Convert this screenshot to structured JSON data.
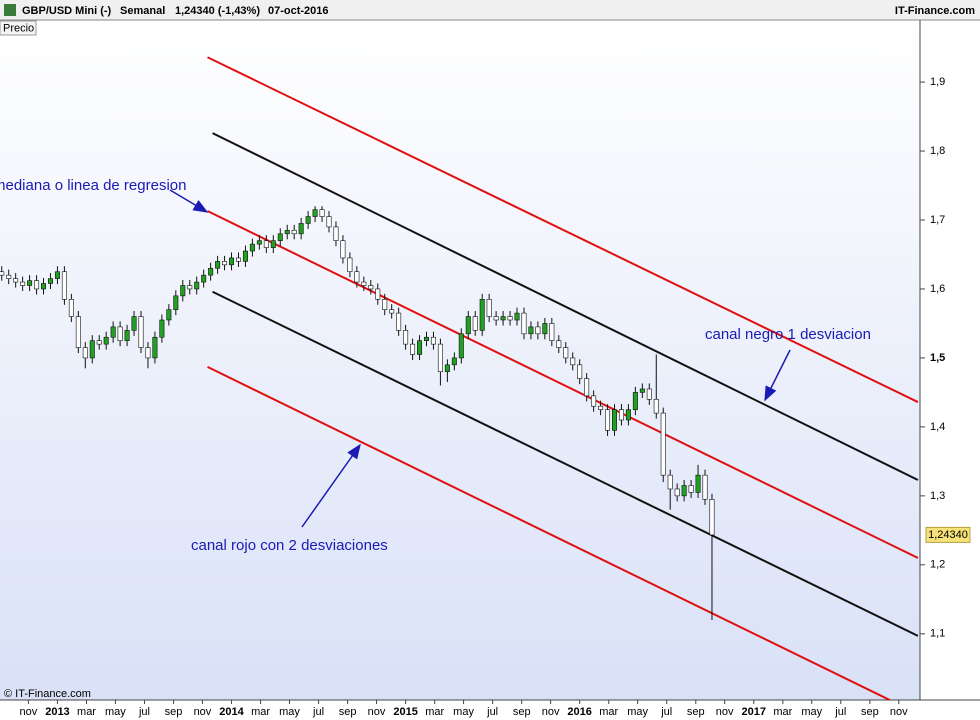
{
  "header": {
    "symbol": "GBP/USD Mini (-)",
    "period": "Semanal",
    "quote": "1,24340 (-1,43%)",
    "date": "07-oct-2016",
    "brand": "IT-Finance.com"
  },
  "panel_label": "Precio",
  "copyright": "© IT-Finance.com",
  "chart_data": {
    "type": "candlestick",
    "up_color": "#22a022",
    "down_color": "#ffffff",
    "xlim": [
      2012.67,
      2017.955
    ],
    "ylim": [
      1.004,
      1.99
    ],
    "xticks": [
      {
        "value": 2012.833,
        "label": "nov"
      },
      {
        "value": 2013,
        "label": "2013"
      },
      {
        "value": 2013.167,
        "label": "mar"
      },
      {
        "value": 2013.333,
        "label": "may"
      },
      {
        "value": 2013.5,
        "label": "jul"
      },
      {
        "value": 2013.667,
        "label": "sep"
      },
      {
        "value": 2013.833,
        "label": "nov"
      },
      {
        "value": 2014,
        "label": "2014"
      },
      {
        "value": 2014.167,
        "label": "mar"
      },
      {
        "value": 2014.333,
        "label": "may"
      },
      {
        "value": 2014.5,
        "label": "jul"
      },
      {
        "value": 2014.667,
        "label": "sep"
      },
      {
        "value": 2014.833,
        "label": "nov"
      },
      {
        "value": 2015,
        "label": "2015"
      },
      {
        "value": 2015.167,
        "label": "mar"
      },
      {
        "value": 2015.333,
        "label": "may"
      },
      {
        "value": 2015.5,
        "label": "jul"
      },
      {
        "value": 2015.667,
        "label": "sep"
      },
      {
        "value": 2015.833,
        "label": "nov"
      },
      {
        "value": 2016,
        "label": "2016"
      },
      {
        "value": 2016.167,
        "label": "mar"
      },
      {
        "value": 2016.333,
        "label": "may"
      },
      {
        "value": 2016.5,
        "label": "jul"
      },
      {
        "value": 2016.667,
        "label": "sep"
      },
      {
        "value": 2016.833,
        "label": "nov"
      },
      {
        "value": 2017,
        "label": "2017"
      },
      {
        "value": 2017.167,
        "label": "mar"
      },
      {
        "value": 2017.333,
        "label": "may"
      },
      {
        "value": 2017.5,
        "label": "jul"
      },
      {
        "value": 2017.667,
        "label": "sep"
      },
      {
        "value": 2017.833,
        "label": "nov"
      }
    ],
    "yticks": [
      {
        "value": 1.1,
        "label": "1,1"
      },
      {
        "value": 1.2,
        "label": "1,2"
      },
      {
        "value": 1.3,
        "label": "1,3"
      },
      {
        "value": 1.4,
        "label": "1,4"
      },
      {
        "value": 1.5,
        "label": "1,5"
      },
      {
        "value": 1.6,
        "label": "1,6"
      },
      {
        "value": 1.7,
        "label": "1,7"
      },
      {
        "value": 1.8,
        "label": "1,8"
      },
      {
        "value": 1.9,
        "label": "1,9"
      }
    ],
    "last_price": {
      "value": 1.2434,
      "label": "1,24340"
    },
    "candles": {
      "x": [
        2012.68,
        2012.72,
        2012.76,
        2012.8,
        2012.84,
        2012.88,
        2012.92,
        2012.96,
        2013,
        2013.04,
        2013.08,
        2013.12,
        2013.16,
        2013.2,
        2013.24,
        2013.28,
        2013.32,
        2013.36,
        2013.4,
        2013.44,
        2013.48,
        2013.52,
        2013.56,
        2013.6,
        2013.64,
        2013.68,
        2013.72,
        2013.76,
        2013.8,
        2013.84,
        2013.88,
        2013.92,
        2013.96,
        2014,
        2014.04,
        2014.08,
        2014.12,
        2014.16,
        2014.2,
        2014.24,
        2014.28,
        2014.32,
        2014.36,
        2014.4,
        2014.44,
        2014.48,
        2014.52,
        2014.56,
        2014.6,
        2014.64,
        2014.68,
        2014.72,
        2014.76,
        2014.8,
        2014.84,
        2014.88,
        2014.92,
        2014.96,
        2015,
        2015.04,
        2015.08,
        2015.12,
        2015.16,
        2015.2,
        2015.24,
        2015.28,
        2015.32,
        2015.36,
        2015.4,
        2015.44,
        2015.48,
        2015.52,
        2015.56,
        2015.6,
        2015.64,
        2015.68,
        2015.72,
        2015.76,
        2015.8,
        2015.84,
        2015.88,
        2015.92,
        2015.96,
        2016,
        2016.04,
        2016.08,
        2016.12,
        2016.16,
        2016.2,
        2016.24,
        2016.28,
        2016.32,
        2016.36,
        2016.4,
        2016.44,
        2016.48,
        2016.52,
        2016.56,
        2016.6,
        2016.64,
        2016.68,
        2016.72,
        2016.76
      ],
      "open": [
        1.625,
        1.62,
        1.615,
        1.61,
        1.605,
        1.612,
        1.6,
        1.608,
        1.615,
        1.625,
        1.585,
        1.56,
        1.515,
        1.5,
        1.525,
        1.52,
        1.53,
        1.545,
        1.525,
        1.54,
        1.56,
        1.515,
        1.5,
        1.53,
        1.555,
        1.57,
        1.59,
        1.605,
        1.6,
        1.61,
        1.62,
        1.63,
        1.64,
        1.635,
        1.645,
        1.64,
        1.655,
        1.665,
        1.67,
        1.66,
        1.67,
        1.68,
        1.685,
        1.68,
        1.695,
        1.705,
        1.715,
        1.705,
        1.69,
        1.67,
        1.645,
        1.625,
        1.61,
        1.605,
        1.6,
        1.585,
        1.57,
        1.565,
        1.54,
        1.52,
        1.505,
        1.525,
        1.53,
        1.52,
        1.48,
        1.49,
        1.5,
        1.535,
        1.56,
        1.54,
        1.585,
        1.56,
        1.555,
        1.56,
        1.555,
        1.565,
        1.535,
        1.545,
        1.535,
        1.55,
        1.525,
        1.515,
        1.5,
        1.49,
        1.47,
        1.445,
        1.43,
        1.425,
        1.395,
        1.425,
        1.41,
        1.425,
        1.45,
        1.455,
        1.44,
        1.42,
        1.33,
        1.31,
        1.3,
        1.315,
        1.305,
        1.33,
        1.295
      ],
      "high": [
        1.633,
        1.628,
        1.623,
        1.618,
        1.62,
        1.62,
        1.616,
        1.623,
        1.633,
        1.633,
        1.593,
        1.568,
        1.523,
        1.533,
        1.533,
        1.538,
        1.553,
        1.553,
        1.548,
        1.568,
        1.568,
        1.523,
        1.538,
        1.563,
        1.578,
        1.598,
        1.613,
        1.613,
        1.618,
        1.628,
        1.638,
        1.648,
        1.648,
        1.653,
        1.653,
        1.663,
        1.673,
        1.678,
        1.678,
        1.678,
        1.688,
        1.693,
        1.693,
        1.703,
        1.713,
        1.72,
        1.72,
        1.713,
        1.698,
        1.678,
        1.653,
        1.633,
        1.618,
        1.613,
        1.608,
        1.593,
        1.578,
        1.573,
        1.548,
        1.528,
        1.533,
        1.538,
        1.538,
        1.528,
        1.498,
        1.508,
        1.543,
        1.568,
        1.568,
        1.593,
        1.593,
        1.568,
        1.568,
        1.568,
        1.573,
        1.573,
        1.553,
        1.553,
        1.558,
        1.558,
        1.533,
        1.523,
        1.508,
        1.498,
        1.478,
        1.453,
        1.438,
        1.433,
        1.433,
        1.433,
        1.433,
        1.458,
        1.463,
        1.463,
        1.505,
        1.428,
        1.338,
        1.318,
        1.323,
        1.323,
        1.345,
        1.338,
        1.303
      ],
      "low": [
        1.612,
        1.607,
        1.602,
        1.597,
        1.597,
        1.592,
        1.592,
        1.6,
        1.607,
        1.577,
        1.552,
        1.507,
        1.485,
        1.492,
        1.512,
        1.512,
        1.522,
        1.517,
        1.517,
        1.532,
        1.507,
        1.485,
        1.492,
        1.522,
        1.547,
        1.562,
        1.582,
        1.592,
        1.592,
        1.602,
        1.612,
        1.622,
        1.627,
        1.627,
        1.632,
        1.632,
        1.647,
        1.657,
        1.652,
        1.652,
        1.662,
        1.672,
        1.672,
        1.672,
        1.687,
        1.697,
        1.697,
        1.682,
        1.662,
        1.637,
        1.617,
        1.602,
        1.597,
        1.592,
        1.577,
        1.562,
        1.557,
        1.532,
        1.512,
        1.497,
        1.497,
        1.517,
        1.512,
        1.46,
        1.465,
        1.482,
        1.492,
        1.527,
        1.532,
        1.532,
        1.552,
        1.547,
        1.547,
        1.547,
        1.547,
        1.527,
        1.527,
        1.527,
        1.527,
        1.517,
        1.507,
        1.492,
        1.482,
        1.462,
        1.437,
        1.422,
        1.417,
        1.387,
        1.387,
        1.402,
        1.402,
        1.417,
        1.442,
        1.432,
        1.412,
        1.32,
        1.28,
        1.292,
        1.292,
        1.297,
        1.297,
        1.287,
        1.12
      ],
      "close": [
        1.62,
        1.615,
        1.61,
        1.605,
        1.612,
        1.6,
        1.608,
        1.615,
        1.625,
        1.585,
        1.56,
        1.515,
        1.5,
        1.525,
        1.52,
        1.53,
        1.545,
        1.525,
        1.54,
        1.56,
        1.515,
        1.5,
        1.53,
        1.555,
        1.57,
        1.59,
        1.605,
        1.6,
        1.61,
        1.62,
        1.63,
        1.64,
        1.635,
        1.645,
        1.64,
        1.655,
        1.665,
        1.67,
        1.66,
        1.67,
        1.68,
        1.685,
        1.68,
        1.695,
        1.705,
        1.715,
        1.705,
        1.69,
        1.67,
        1.645,
        1.625,
        1.61,
        1.605,
        1.6,
        1.585,
        1.57,
        1.565,
        1.54,
        1.52,
        1.505,
        1.525,
        1.53,
        1.52,
        1.48,
        1.49,
        1.5,
        1.535,
        1.56,
        1.54,
        1.585,
        1.56,
        1.555,
        1.56,
        1.555,
        1.565,
        1.535,
        1.545,
        1.535,
        1.55,
        1.525,
        1.515,
        1.5,
        1.49,
        1.47,
        1.445,
        1.43,
        1.425,
        1.395,
        1.425,
        1.41,
        1.425,
        1.45,
        1.455,
        1.44,
        1.42,
        1.33,
        1.31,
        1.3,
        1.315,
        1.305,
        1.33,
        1.295,
        1.2434
      ]
    },
    "channel_lines": [
      {
        "color": "#e01010",
        "x": [
          2013.862,
          2017.943
        ],
        "y": [
          1.936,
          1.436
        ]
      },
      {
        "color": "#111111",
        "x": [
          2013.891,
          2017.943
        ],
        "y": [
          1.826,
          1.323
        ]
      },
      {
        "color": "#e01010",
        "x": [
          2013.862,
          2017.943
        ],
        "y": [
          1.713,
          1.21
        ]
      },
      {
        "color": "#111111",
        "x": [
          2013.891,
          2017.943
        ],
        "y": [
          1.596,
          1.097
        ]
      },
      {
        "color": "#e01010",
        "x": [
          2013.862,
          2017.943
        ],
        "y": [
          1.487,
          0.984
        ]
      }
    ],
    "annotations": [
      {
        "text": "mediana o linea de regresion"
      },
      {
        "text": "canal negro 1 desviacion"
      },
      {
        "text": "canal rojo con 2 desviaciones"
      }
    ]
  }
}
